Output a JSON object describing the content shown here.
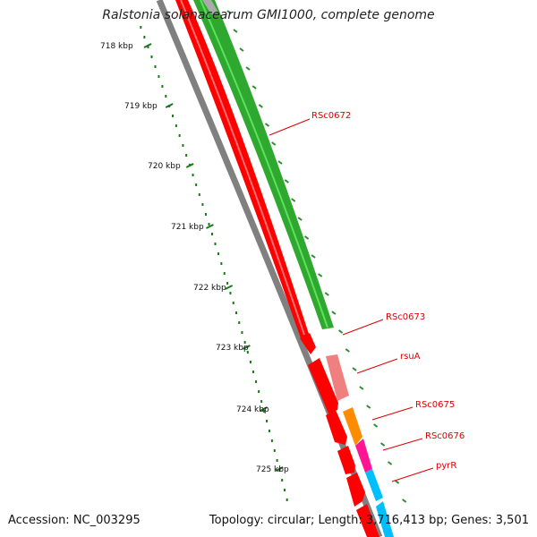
{
  "title": "Ralstonia solanacearum GMI1000, complete genome",
  "footer": {
    "accession": "Accession: NC_003295",
    "summary": "Topology: circular; Length: 3,716,413 bp; Genes: 3,501"
  },
  "scale_labels": [
    "718 kbp",
    "719 kbp",
    "720 kbp",
    "721 kbp",
    "722 kbp",
    "723 kbp",
    "724 kbp",
    "725 kbp"
  ],
  "genes": [
    {
      "name": "RSc0672",
      "color": "#33cc33"
    },
    {
      "name": "RSc0673",
      "color": "#ff0000"
    },
    {
      "name": "rsuA",
      "color": "#f08080"
    },
    {
      "name": "RSc0675",
      "color": "#ff8c00"
    },
    {
      "name": "RSc0676",
      "color": "#ff1493"
    },
    {
      "name": "pyrR",
      "color": "#00bfff"
    }
  ],
  "colors": {
    "backbone": "#808080",
    "cds_reverse": "#ff0000",
    "ruler": "#006400",
    "label": "#e00000"
  }
}
